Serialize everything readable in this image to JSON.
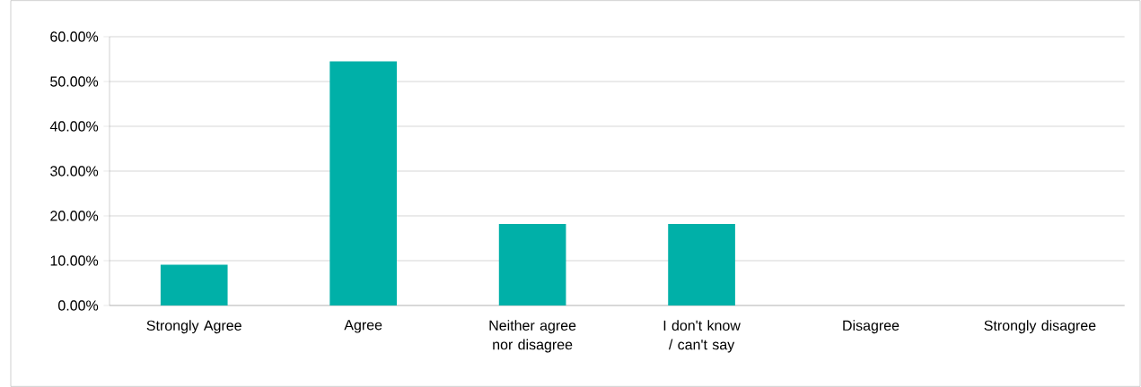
{
  "chart_data": {
    "type": "bar",
    "categories": [
      "Strongly Agree",
      "Agree",
      "Neither agree nor disagree",
      "I don't know / can't say",
      "Disagree",
      "Strongly disagree"
    ],
    "values": [
      9.1,
      54.5,
      18.2,
      18.2,
      0,
      0
    ],
    "color": "#00b0a8",
    "ylim": [
      0,
      60
    ],
    "yticks": [
      {
        "value": 0,
        "label": "0.00%"
      },
      {
        "value": 10,
        "label": "10.00%"
      },
      {
        "value": 20,
        "label": "20.00%"
      },
      {
        "value": 30,
        "label": "30.00%"
      },
      {
        "value": 40,
        "label": "40.00%"
      },
      {
        "value": 50,
        "label": "50.00%"
      },
      {
        "value": 60,
        "label": "60.00%"
      }
    ],
    "grid": "y"
  }
}
